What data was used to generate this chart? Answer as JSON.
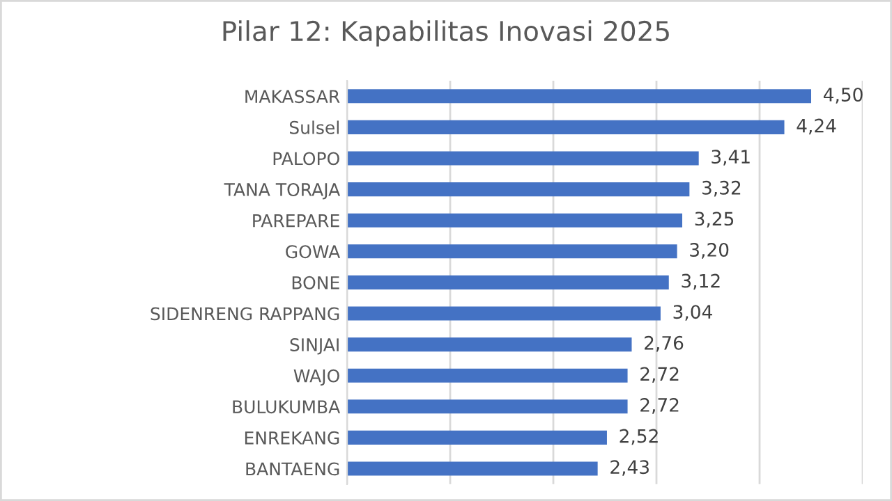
{
  "chart_data": {
    "type": "bar",
    "orientation": "horizontal",
    "title": "Pilar 12: Kapabilitas Inovasi 2025",
    "categories": [
      "MAKASSAR",
      "Sulsel",
      "PALOPO",
      "TANA TORAJA",
      "PAREPARE",
      "GOWA",
      "BONE",
      "SIDENRENG RAPPANG",
      "SINJAI",
      "WAJO",
      "BULUKUMBA",
      "ENREKANG",
      "BANTAENG"
    ],
    "values": [
      4.5,
      4.24,
      3.41,
      3.32,
      3.25,
      3.2,
      3.12,
      3.04,
      2.76,
      2.72,
      2.72,
      2.52,
      2.43
    ],
    "value_labels": [
      "4,50",
      "4,24",
      "3,41",
      "3,32",
      "3,25",
      "3,20",
      "3,12",
      "3,04",
      "2,76",
      "2,72",
      "2,72",
      "2,52",
      "2,43"
    ],
    "color": "#4472c4",
    "xlim": [
      0,
      5
    ],
    "xticks": [
      {
        "value": 0,
        "label": null
      },
      {
        "value": 1,
        "label": null
      },
      {
        "value": 2,
        "label": null
      },
      {
        "value": 3,
        "label": null
      },
      {
        "value": 4,
        "label": null
      },
      {
        "value": 5,
        "label": null
      }
    ],
    "grid": "x",
    "tick_labels": "y"
  }
}
